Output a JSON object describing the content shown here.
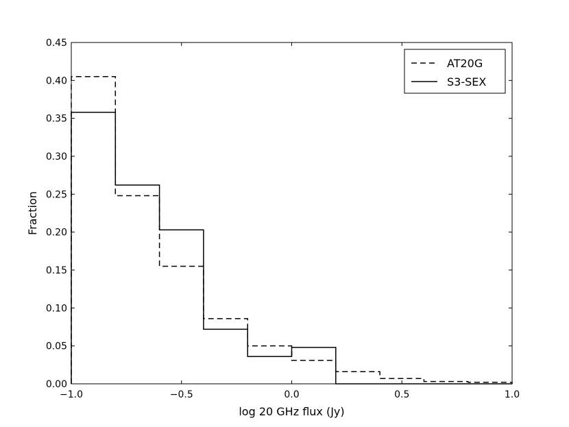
{
  "chart_data": {
    "type": "step",
    "xlabel": "log 20 GHz flux (Jy)",
    "ylabel": "Fraction",
    "xlim": [
      -1.0,
      1.0
    ],
    "ylim": [
      0.0,
      0.45
    ],
    "xticks": [
      "−1.0",
      "−0.5",
      "0.0",
      "0.5",
      "1.0"
    ],
    "xtick_values": [
      -1.0,
      -0.5,
      0.0,
      0.5,
      1.0
    ],
    "yticks": [
      "0.00",
      "0.05",
      "0.10",
      "0.15",
      "0.20",
      "0.25",
      "0.30",
      "0.35",
      "0.40",
      "0.45"
    ],
    "ytick_values": [
      0.0,
      0.05,
      0.1,
      0.15,
      0.2,
      0.25,
      0.3,
      0.35,
      0.4,
      0.45
    ],
    "bin_edges": [
      -1.0,
      -0.8,
      -0.6,
      -0.4,
      -0.2,
      0.0,
      0.2,
      0.4,
      0.6,
      0.8,
      1.0
    ],
    "grid": false,
    "legend_position": "top-right",
    "series": [
      {
        "name": "AT20G",
        "style": "dashed",
        "color": "#000000",
        "values": [
          0.405,
          0.248,
          0.155,
          0.086,
          0.05,
          0.031,
          0.016,
          0.007,
          0.003,
          0.002
        ]
      },
      {
        "name": "S3-SEX",
        "style": "solid",
        "color": "#000000",
        "values": [
          0.358,
          0.262,
          0.203,
          0.072,
          0.036,
          0.048,
          0.0,
          0.0,
          0.0,
          0.0
        ]
      }
    ]
  }
}
